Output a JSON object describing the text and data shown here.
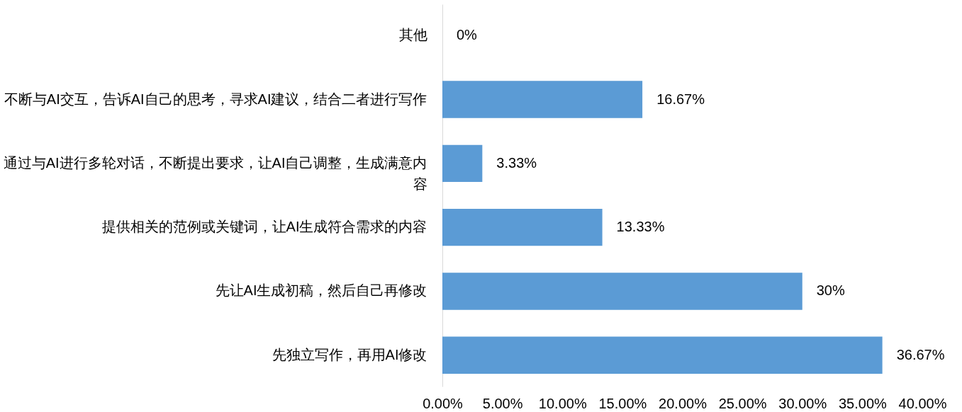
{
  "chart_data": {
    "type": "bar",
    "orientation": "horizontal",
    "categories": [
      "其他",
      "不断与AI交互，告诉AI自己的思考，寻求AI建议，结合二者进行写作",
      "通过与AI进行多轮对话，不断提出要求，让AI自己调整，生成满意内容",
      "提供相关的范例或关键词，让AI生成符合需求的内容",
      "先让AI生成初稿，然后自己再修改",
      "先独立写作，再用AI修改"
    ],
    "values": [
      0,
      16.67,
      3.33,
      13.33,
      30,
      36.67
    ],
    "value_labels": [
      "0%",
      "16.67%",
      "3.33%",
      "13.33%",
      "30%",
      "36.67%"
    ],
    "color": "#5b9bd5",
    "xlim": [
      0,
      40
    ],
    "xticks": [
      {
        "value": 0,
        "label": "0.00%"
      },
      {
        "value": 5,
        "label": "5.00%"
      },
      {
        "value": 10,
        "label": "10.00%"
      },
      {
        "value": 15,
        "label": "15.00%"
      },
      {
        "value": 20,
        "label": "20.00%"
      },
      {
        "value": 25,
        "label": "25.00%"
      },
      {
        "value": 30,
        "label": "30.00%"
      },
      {
        "value": 35,
        "label": "35.00%"
      },
      {
        "value": 40,
        "label": "40.00%"
      }
    ]
  }
}
